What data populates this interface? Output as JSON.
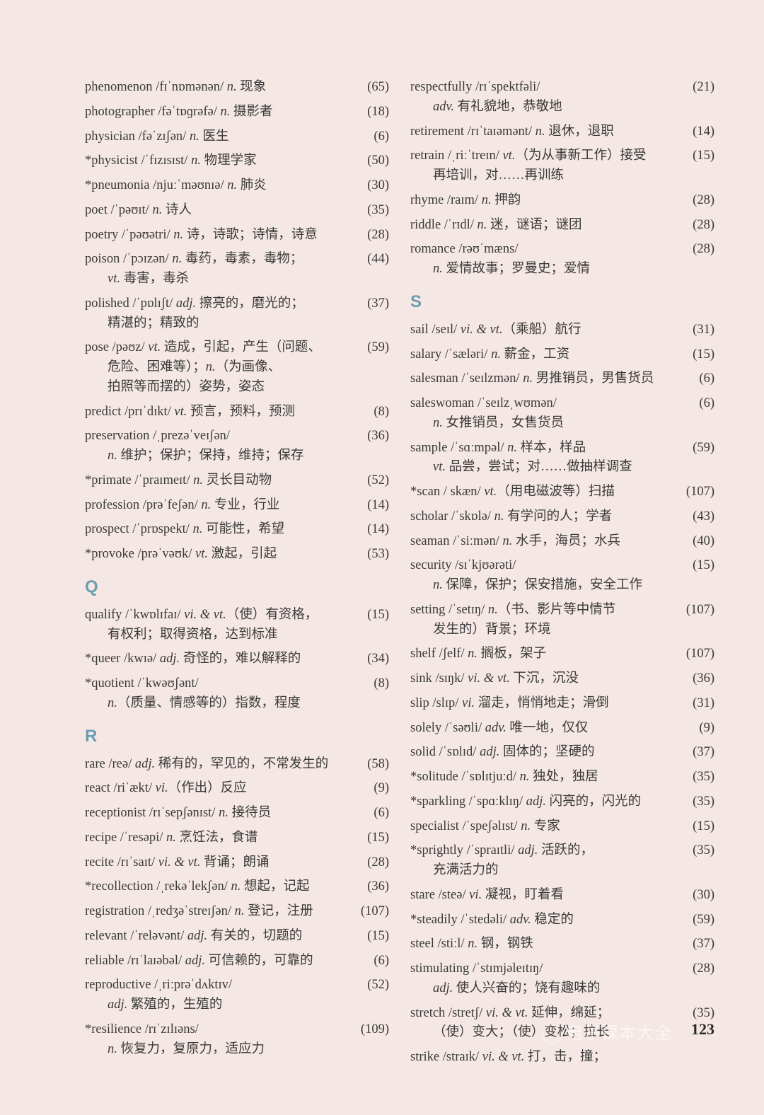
{
  "page_number": "123",
  "watermark": "电子课本大全",
  "background_color": "#f5e8e4",
  "letter_color": "#6b9db0",
  "text_color": "#3a3a3a",
  "font_size_pt": 14,
  "left_column": [
    {
      "text": "phenomenon /fɪˈnɒmənən/ <i>n.</i> 现象",
      "num": "(65)"
    },
    {
      "text": "photographer /fəˈtɒɡrəfə/ <i>n.</i> 摄影者",
      "num": "(18)"
    },
    {
      "text": "physician /fəˈzɪʃən/ <i>n.</i> 医生",
      "num": "(6)"
    },
    {
      "text": "*physicist /ˈfɪzɪsɪst/ <i>n.</i> 物理学家",
      "num": "(50)"
    },
    {
      "text": "*pneumonia /njuːˈməʊnɪə/ <i>n.</i> 肺炎",
      "num": "(30)"
    },
    {
      "text": "poet /ˈpəʊɪt/ <i>n.</i> 诗人",
      "num": "(35)"
    },
    {
      "text": "poetry /ˈpəʊətri/ <i>n.</i> 诗，诗歌；诗情，诗意",
      "num": "(28)"
    },
    {
      "text": "poison /ˈpɔɪzən/ <i>n.</i> 毒药，毒素，毒物；<br><span class=\"indent\"><i>vt.</i> 毒害，毒杀</span>",
      "num": "(44)"
    },
    {
      "text": "polished /ˈpɒlɪʃt/ <i>adj.</i> 擦亮的，磨光的；<br><span class=\"indent\">精湛的；精致的</span>",
      "num": "(37)"
    },
    {
      "text": "pose /pəʊz/ <i>vt.</i> 造成，引起，产生（问题、<br><span class=\"indent\">危险、困难等）；<i>n.</i>（为画像、</span><br><span class=\"indent\">拍照等而摆的）姿势，姿态</span>",
      "num": "(59)"
    },
    {
      "text": "predict /prɪˈdɪkt/ <i>vt.</i> 预言，预料，预测",
      "num": "(8)"
    },
    {
      "text": "preservation /ˌprezəˈveɪʃən/<br><span class=\"indent\"><i>n.</i> 维护；保护；保持，维持；保存</span>",
      "num": "(36)"
    },
    {
      "text": "*primate /ˈpraɪmeɪt/ <i>n.</i> 灵长目动物",
      "num": "(52)"
    },
    {
      "text": "profession /prəˈfeʃən/ <i>n.</i> 专业，行业",
      "num": "(14)"
    },
    {
      "text": "prospect /ˈprɒspekt/ <i>n.</i> 可能性，希望",
      "num": "(14)"
    },
    {
      "text": "*provoke /prəˈvəʊk/ <i>vt.</i> 激起，引起",
      "num": "(53)"
    }
  ],
  "section_Q": "Q",
  "q_entries": [
    {
      "text": "qualify /ˈkwɒlɪfaɪ/ <i>vi. & vt.</i>（使）有资格，<br><span class=\"indent\">有权利；取得资格，达到标准</span>",
      "num": "(15)"
    },
    {
      "text": "*queer /kwɪə/ <i>adj.</i> 奇怪的，难以解释的",
      "num": "(34)"
    },
    {
      "text": "*quotient /ˈkwəʊʃənt/<br><span class=\"indent\"><i>n.</i>（质量、情感等的）指数，程度</span>",
      "num": "(8)"
    }
  ],
  "section_R": "R",
  "r_entries": [
    {
      "text": "rare /reə/ <i>adj.</i> 稀有的，罕见的，不常发生的",
      "num": "(58)"
    },
    {
      "text": "react /riˈækt/ <i>vi.</i>（作出）反应",
      "num": "(9)"
    },
    {
      "text": "receptionist /rɪˈsepʃənɪst/ <i>n.</i> 接待员",
      "num": "(6)"
    },
    {
      "text": "recipe /ˈresəpi/ <i>n.</i> 烹饪法，食谱",
      "num": "(15)"
    },
    {
      "text": "recite /rɪˈsaɪt/ <i>vi. & vt.</i> 背诵；朗诵",
      "num": "(28)"
    },
    {
      "text": "*recollection /ˌrekəˈlekʃən/ <i>n.</i> 想起，记起",
      "num": "(36)"
    },
    {
      "text": "registration /ˌredʒəˈstreɪʃən/ <i>n.</i> 登记，注册",
      "num": "(107)"
    },
    {
      "text": "relevant /ˈreləvənt/ <i>adj.</i> 有关的，切题的",
      "num": "(15)"
    },
    {
      "text": "reliable /rɪˈlaɪəbəl/ <i>adj.</i> 可信赖的，可靠的",
      "num": "(6)"
    },
    {
      "text": "reproductive /ˌriːprəˈdʌktɪv/<br><span class=\"indent\"><i>adj.</i> 繁殖的，生殖的</span>",
      "num": "(52)"
    },
    {
      "text": "*resilience /rɪˈzɪlɪəns/<br><span class=\"indent\"><i>n.</i> 恢复力，复原力，适应力</span>",
      "num": "(109)"
    }
  ],
  "right_column_top": [
    {
      "text": "respectfully /rɪˈspektfəli/<br><span class=\"indent\"><i>adv.</i> 有礼貌地，恭敬地</span>",
      "num": "(21)"
    },
    {
      "text": "retirement /rɪˈtaɪəmənt/ <i>n.</i> 退休，退职",
      "num": "(14)"
    },
    {
      "text": "retrain /ˌriːˈtreɪn/ <i>vt.</i>（为从事新工作）接受<br><span class=\"indent\">再培训，对……再训练</span>",
      "num": "(15)"
    },
    {
      "text": "rhyme /raɪm/ <i>n.</i> 押韵",
      "num": "(28)"
    },
    {
      "text": "riddle /ˈrɪdl/ <i>n.</i> 迷，谜语；谜团",
      "num": "(28)"
    },
    {
      "text": "romance /rəʊˈmæns/<br><span class=\"indent\"><i>n.</i> 爱情故事；罗曼史；爱情</span>",
      "num": "(28)"
    }
  ],
  "section_S": "S",
  "s_entries": [
    {
      "text": "sail /seɪl/ <i>vi. & vt.</i>（乘船）航行",
      "num": "(31)"
    },
    {
      "text": "salary /ˈsæləri/ <i>n.</i> 薪金，工资",
      "num": "(15)"
    },
    {
      "text": "salesman /ˈseɪlzmən/ <i>n.</i> 男推销员，男售货员",
      "num": "(6)"
    },
    {
      "text": "saleswoman /ˈseɪlzˌwʊmən/<br><span class=\"indent\"><i>n.</i> 女推销员，女售货员</span>",
      "num": "(6)"
    },
    {
      "text": "sample /ˈsɑːmpəl/ <i>n.</i> 样本，样品<br><span class=\"indent\"><i>vt.</i> 品尝，尝试；对……做抽样调查</span>",
      "num": "(59)"
    },
    {
      "text": "*scan / skæn/ <i>vt.</i>（用电磁波等）扫描",
      "num": "(107)"
    },
    {
      "text": "scholar /ˈskɒlə/ <i>n.</i> 有学问的人；学者",
      "num": "(43)"
    },
    {
      "text": "seaman /ˈsiːmən/ <i>n.</i> 水手，海员；水兵",
      "num": "(40)"
    },
    {
      "text": "security /sɪˈkjʊərəti/<br><span class=\"indent\"><i>n.</i> 保障，保护；保安措施，安全工作</span>",
      "num": "(15)"
    },
    {
      "text": "setting /ˈsetɪŋ/ <i>n.</i>（书、影片等中情节<br><span class=\"indent\">发生的）背景；环境</span>",
      "num": "(107)"
    },
    {
      "text": "shelf /ʃelf/ <i>n.</i> 搁板，架子",
      "num": "(107)"
    },
    {
      "text": "sink /sɪŋk/ <i>vi. & vt.</i> 下沉，沉没",
      "num": "(36)"
    },
    {
      "text": "slip /slɪp/ <i>vi.</i> 溜走，悄悄地走；滑倒",
      "num": "(31)"
    },
    {
      "text": "solely /ˈsəʊli/ <i>adv.</i> 唯一地，仅仅",
      "num": "(9)"
    },
    {
      "text": "solid /ˈsɒlɪd/ <i>adj.</i> 固体的；坚硬的",
      "num": "(37)"
    },
    {
      "text": "*solitude /ˈsɒlɪtjuːd/ <i>n.</i> 独处，独居",
      "num": "(35)"
    },
    {
      "text": "*sparkling /ˈspɑːklɪŋ/ <i>adj.</i> 闪亮的，闪光的",
      "num": "(35)"
    },
    {
      "text": "specialist /ˈspeʃəlɪst/ <i>n.</i> 专家",
      "num": "(15)"
    },
    {
      "text": "*sprightly /ˈspraɪtli/ <i>adj.</i> 活跃的，<br><span class=\"indent\">充满活力的</span>",
      "num": "(35)"
    },
    {
      "text": "stare /steə/ <i>vi.</i> 凝视，盯着看",
      "num": "(30)"
    },
    {
      "text": "*steadily /ˈstedəli/ <i>adv.</i> 稳定的",
      "num": "(59)"
    },
    {
      "text": "steel /stiːl/ <i>n.</i> 钢，钢铁",
      "num": "(37)"
    },
    {
      "text": "stimulating /ˈstɪmjəleɪtɪŋ/<br><span class=\"indent\"><i>adj.</i> 使人兴奋的；饶有趣味的</span>",
      "num": "(28)"
    },
    {
      "text": "stretch /stretʃ/ <i>vi. & vt.</i> 延伸，绵延；<br><span class=\"indent\">（使）变大；（使）变松；拉长</span>",
      "num": "(35)"
    },
    {
      "text": "strike /straɪk/ <i>vi. & vt.</i> 打，击，撞；",
      "num": ""
    }
  ]
}
